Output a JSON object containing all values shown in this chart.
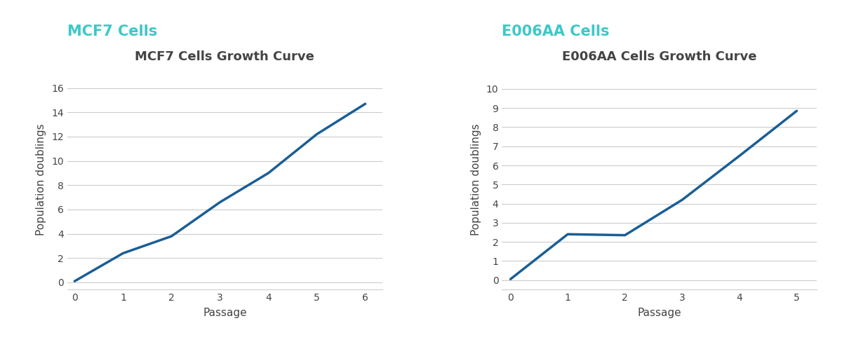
{
  "mcf7_title": "MCF7 Cells Growth Curve",
  "mcf7_header": "MCF7 Cells",
  "mcf7_x": [
    0,
    1,
    2,
    3,
    4,
    5,
    6
  ],
  "mcf7_y": [
    0.1,
    2.4,
    3.8,
    6.6,
    9.0,
    12.2,
    14.7
  ],
  "mcf7_xlim": [
    -0.15,
    6.35
  ],
  "mcf7_ylim": [
    -0.6,
    17.5
  ],
  "mcf7_yticks": [
    0,
    2,
    4,
    6,
    8,
    10,
    12,
    14,
    16
  ],
  "mcf7_xticks": [
    0,
    1,
    2,
    3,
    4,
    5,
    6
  ],
  "e006aa_title": "E006AA Cells Growth Curve",
  "e006aa_header": "E006AA Cells",
  "e006aa_x": [
    0,
    1,
    2,
    3,
    4,
    5
  ],
  "e006aa_y": [
    0.05,
    2.4,
    2.35,
    4.2,
    6.5,
    8.85
  ],
  "e006aa_xlim": [
    -0.15,
    5.35
  ],
  "e006aa_ylim": [
    -0.5,
    11.0
  ],
  "e006aa_yticks": [
    0,
    1,
    2,
    3,
    4,
    5,
    6,
    7,
    8,
    9,
    10
  ],
  "e006aa_xticks": [
    0,
    1,
    2,
    3,
    4,
    5
  ],
  "line_color": "#1a5e96",
  "line_width": 2.5,
  "header_color": "#3ec8c8",
  "title_fontsize": 13,
  "header_fontsize": 15,
  "axis_label_fontsize": 11,
  "tick_fontsize": 10,
  "xlabel": "Passage",
  "ylabel": "Population doublings",
  "bg_color": "#ffffff",
  "grid_color": "#cccccc",
  "title_color": "#444444",
  "tick_color": "#444444"
}
